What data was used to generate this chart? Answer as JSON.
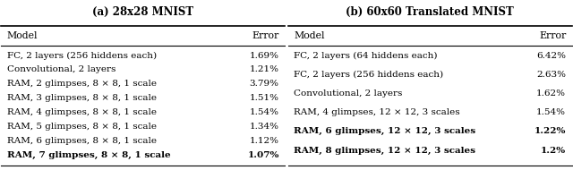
{
  "table_a_title": "(a) 28x28 MNIST",
  "table_b_title": "(b) 60x60 Translated MNIST",
  "table_a_header": [
    "Model",
    "Error"
  ],
  "table_b_header": [
    "Model",
    "Error"
  ],
  "table_a_rows": [
    [
      "FC, 2 layers (256 hiddens each)",
      "1.69%"
    ],
    [
      "Convolutional, 2 layers",
      "1.21%"
    ],
    [
      "RAM, 2 glimpses, 8 × 8, 1 scale",
      "3.79%"
    ],
    [
      "RAM, 3 glimpses, 8 × 8, 1 scale",
      "1.51%"
    ],
    [
      "RAM, 4 glimpses, 8 × 8, 1 scale",
      "1.54%"
    ],
    [
      "RAM, 5 glimpses, 8 × 8, 1 scale",
      "1.34%"
    ],
    [
      "RAM, 6 glimpses, 8 × 8, 1 scale",
      "1.12%"
    ],
    [
      "RAM, 7 glimpses, 8 × 8, 1 scale",
      "1.07%"
    ]
  ],
  "table_a_bold": [
    false,
    false,
    false,
    false,
    false,
    false,
    false,
    true
  ],
  "table_b_rows": [
    [
      "FC, 2 layers (64 hiddens each)",
      "6.42%"
    ],
    [
      "FC, 2 layers (256 hiddens each)",
      "2.63%"
    ],
    [
      "Convolutional, 2 layers",
      "1.62%"
    ],
    [
      "RAM, 4 glimpses, 12 × 12, 3 scales",
      "1.54%"
    ],
    [
      "RAM, 6 glimpses, 12 × 12, 3 scales",
      "1.22%"
    ],
    [
      "RAM, 8 glimpses, 12 × 12, 3 scales",
      "1.2%"
    ]
  ],
  "table_b_bold": [
    false,
    false,
    false,
    false,
    true,
    true
  ],
  "bg_color": "#ffffff",
  "text_color": "#000000",
  "font_size": 7.5,
  "title_font_size": 8.5,
  "header_font_size": 7.8
}
